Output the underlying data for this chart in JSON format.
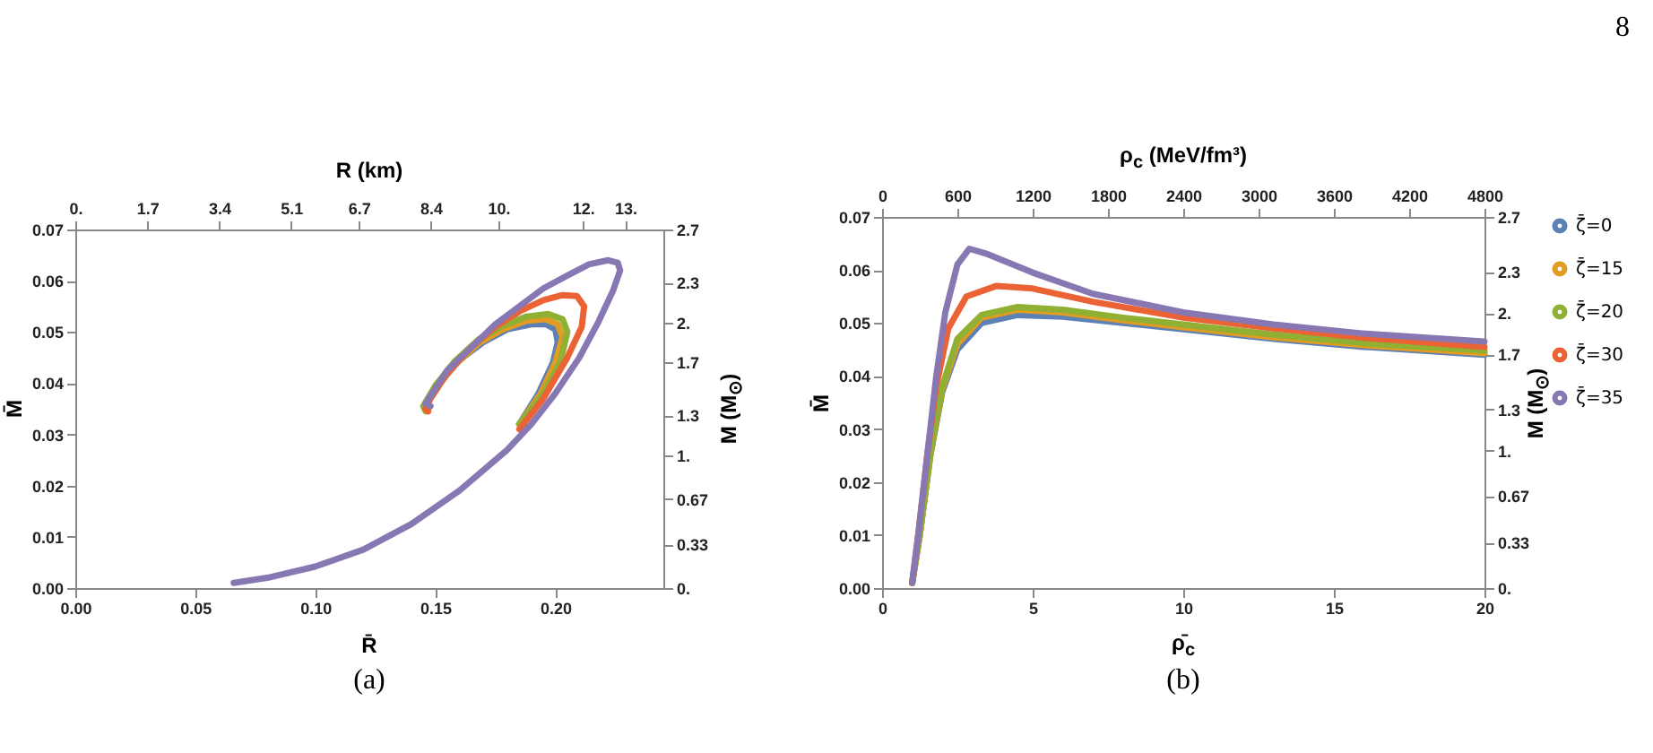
{
  "chart_data": [
    {
      "type": "line",
      "xlabel": "R̄",
      "ylabel": "M̄",
      "x2label": "R (km)",
      "y2label": "M (M$_{⊙}$)",
      "line_style": "solid",
      "annotations": [
        "(a)"
      ],
      "xlim": [
        0,
        0.245
      ],
      "xticks": [
        {
          "value": 0,
          "label": "0.00"
        },
        {
          "value": 0.05,
          "label": "0.05"
        },
        {
          "value": 0.1,
          "label": "0.10"
        },
        {
          "value": 0.15,
          "label": "0.15"
        },
        {
          "value": 0.2,
          "label": "0.20"
        }
      ],
      "ylim": [
        0,
        0.07
      ],
      "yticks": [
        {
          "value": 0,
          "label": "0.00"
        },
        {
          "value": 0.01,
          "label": "0.01"
        },
        {
          "value": 0.02,
          "label": "0.02"
        },
        {
          "value": 0.03,
          "label": "0.03"
        },
        {
          "value": 0.04,
          "label": "0.04"
        },
        {
          "value": 0.05,
          "label": "0.05"
        },
        {
          "value": 0.06,
          "label": "0.06"
        },
        {
          "value": 0.07,
          "label": "0.07"
        }
      ],
      "x2lim": [
        0,
        13.9
      ],
      "x2ticks": [
        {
          "value": 0,
          "label": "0."
        },
        1.7,
        3.4,
        5.1,
        6.7,
        8.4,
        {
          "value": 10,
          "label": "10."
        },
        {
          "value": 12,
          "label": "12."
        },
        {
          "value": 13,
          "label": "13."
        }
      ],
      "y2lim": [
        0,
        2.7
      ],
      "y2ticks": [
        {
          "value": 0,
          "label": "0."
        },
        0.33,
        0.67,
        {
          "value": 1,
          "label": "1."
        },
        1.3,
        1.7,
        {
          "value": 2,
          "label": "2."
        },
        2.3,
        2.7
      ],
      "series": [
        {
          "color": "#5e81b5",
          "x": [
            0.185,
            0.193,
            0.199,
            0.201,
            0.2,
            0.196,
            0.19,
            0.18,
            0.17,
            0.16,
            0.15,
            0.146,
            0.147
          ],
          "values": [
            0.032,
            0.038,
            0.044,
            0.048,
            0.0505,
            0.0515,
            0.0515,
            0.0505,
            0.048,
            0.0445,
            0.039,
            0.036,
            0.035
          ]
        },
        {
          "color": "#e19c24",
          "x": [
            0.185,
            0.194,
            0.2,
            0.203,
            0.201,
            0.196,
            0.188,
            0.178,
            0.168,
            0.158,
            0.15,
            0.146,
            0.147
          ],
          "values": [
            0.032,
            0.038,
            0.044,
            0.049,
            0.0515,
            0.0525,
            0.0522,
            0.0505,
            0.0478,
            0.0435,
            0.039,
            0.0355,
            0.0348
          ]
        },
        {
          "color": "#8fb032",
          "x": [
            0.185,
            0.195,
            0.202,
            0.205,
            0.203,
            0.197,
            0.188,
            0.178,
            0.168,
            0.158,
            0.15,
            0.145,
            0.146
          ],
          "values": [
            0.032,
            0.038,
            0.044,
            0.05,
            0.0525,
            0.0535,
            0.053,
            0.0512,
            0.0485,
            0.0442,
            0.0395,
            0.0355,
            0.0345
          ]
        },
        {
          "color": "#eb6235",
          "x": [
            0.185,
            0.195,
            0.205,
            0.211,
            0.212,
            0.209,
            0.203,
            0.195,
            0.185,
            0.175,
            0.165,
            0.155,
            0.148,
            0.146,
            0.147
          ],
          "values": [
            0.031,
            0.037,
            0.045,
            0.051,
            0.055,
            0.057,
            0.0572,
            0.0562,
            0.054,
            0.051,
            0.047,
            0.042,
            0.037,
            0.035,
            0.0345
          ]
        },
        {
          "color": "#8778b3",
          "x": [
            0.066,
            0.08,
            0.1,
            0.12,
            0.14,
            0.16,
            0.18,
            0.19,
            0.2,
            0.21,
            0.218,
            0.224,
            0.227,
            0.226,
            0.222,
            0.214,
            0.205,
            0.195,
            0.185,
            0.175,
            0.165,
            0.155,
            0.148,
            0.146,
            0.148
          ],
          "values": [
            0.001,
            0.002,
            0.0042,
            0.0075,
            0.0125,
            0.019,
            0.027,
            0.032,
            0.038,
            0.045,
            0.052,
            0.058,
            0.062,
            0.0635,
            0.064,
            0.0632,
            0.061,
            0.0585,
            0.055,
            0.0515,
            0.047,
            0.0425,
            0.0375,
            0.036,
            0.0355
          ]
        }
      ]
    },
    {
      "type": "line",
      "xlabel": "ρ̄$_{c}$",
      "ylabel": "M̄",
      "x2label": "ρ$_{c}$ (MeV/fm³)",
      "y2label": "M (M$_{⊙}$)",
      "line_style": "solid",
      "legend": "right",
      "annotations": [
        "(b)",
        "8"
      ],
      "xlim": [
        0,
        20
      ],
      "xticks": [
        0,
        5,
        10,
        15,
        20
      ],
      "ylim": [
        0,
        0.07
      ],
      "yticks": [
        {
          "value": 0,
          "label": "0.00"
        },
        {
          "value": 0.01,
          "label": "0.01"
        },
        {
          "value": 0.02,
          "label": "0.02"
        },
        {
          "value": 0.03,
          "label": "0.03"
        },
        {
          "value": 0.04,
          "label": "0.04"
        },
        {
          "value": 0.05,
          "label": "0.05"
        },
        {
          "value": 0.06,
          "label": "0.06"
        },
        {
          "value": 0.07,
          "label": "0.07"
        }
      ],
      "x2lim": [
        0,
        4800
      ],
      "x2ticks": [
        0,
        600,
        1200,
        1800,
        2400,
        3000,
        3600,
        4200,
        4800
      ],
      "y2lim": [
        0,
        2.7
      ],
      "y2ticks": [
        {
          "value": 0,
          "label": "0."
        },
        0.33,
        0.67,
        {
          "value": 1,
          "label": "1."
        },
        1.3,
        1.7,
        {
          "value": 2,
          "label": "2."
        },
        2.3,
        2.7
      ],
      "series": [
        {
          "name": "ζ̄=0",
          "color": "#5e81b5",
          "x": [
            1.0,
            1.25,
            1.6,
            2,
            2.5,
            3.3,
            4.5,
            6,
            8,
            10,
            13,
            16,
            20
          ],
          "values": [
            0.001,
            0.01,
            0.025,
            0.037,
            0.045,
            0.05,
            0.0515,
            0.0512,
            0.05,
            0.0488,
            0.047,
            0.0455,
            0.044
          ]
        },
        {
          "name": "ζ̄=15",
          "color": "#e19c24",
          "x": [
            1.0,
            1.25,
            1.6,
            2,
            2.5,
            3.3,
            4.5,
            6,
            8,
            10,
            13,
            16,
            20
          ],
          "values": [
            0.001,
            0.01,
            0.025,
            0.0375,
            0.046,
            0.051,
            0.0525,
            0.052,
            0.0505,
            0.0492,
            0.0473,
            0.0458,
            0.0443
          ]
        },
        {
          "name": "ζ̄=20",
          "color": "#8fb032",
          "x": [
            1.0,
            1.25,
            1.6,
            2,
            2.5,
            3.3,
            4.5,
            6,
            8,
            10,
            13,
            16,
            20
          ],
          "values": [
            0.001,
            0.01,
            0.025,
            0.038,
            0.047,
            0.0515,
            0.053,
            0.0525,
            0.051,
            0.0497,
            0.0478,
            0.0462,
            0.0448
          ]
        },
        {
          "name": "ζ̄=30",
          "color": "#eb6235",
          "x": [
            1.0,
            1.2,
            1.5,
            1.8,
            2.2,
            2.8,
            3.8,
            5,
            7,
            10,
            13,
            16,
            20
          ],
          "values": [
            0.001,
            0.01,
            0.025,
            0.038,
            0.049,
            0.055,
            0.057,
            0.0565,
            0.054,
            0.051,
            0.049,
            0.0472,
            0.0455
          ]
        },
        {
          "name": "ζ̄=35",
          "color": "#8778b3",
          "x": [
            1.0,
            1.2,
            1.5,
            1.8,
            2.1,
            2.5,
            2.9,
            3.5,
            5,
            7,
            10,
            13,
            16,
            20
          ],
          "values": [
            0.001,
            0.01,
            0.025,
            0.04,
            0.052,
            0.061,
            0.064,
            0.063,
            0.0595,
            0.0555,
            0.052,
            0.0497,
            0.048,
            0.0465
          ]
        }
      ]
    }
  ]
}
